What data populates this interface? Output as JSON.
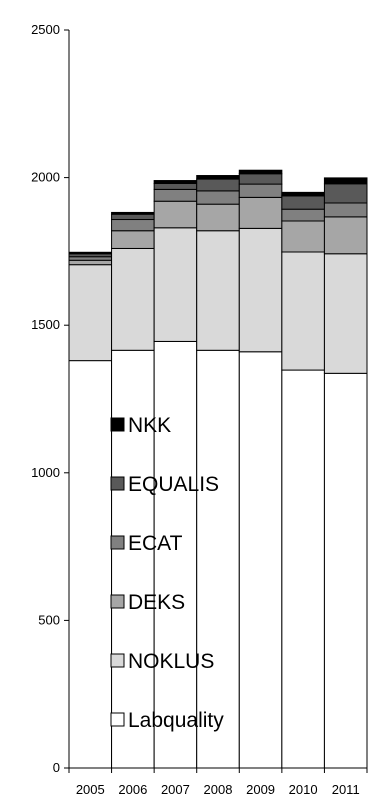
{
  "chart_data": {
    "type": "bar",
    "stacked": true,
    "categories": [
      "2005",
      "2006",
      "2007",
      "2008",
      "2009",
      "2010",
      "2011"
    ],
    "ylim": [
      0,
      2500
    ],
    "yticks": [
      "0",
      "500",
      "1000",
      "1500",
      "2000",
      "2500"
    ],
    "grid": false,
    "legend_position": "inside-bottom-left",
    "series": [
      {
        "name": "Labquality",
        "color": "#ffffff",
        "values": [
          1380,
          1415,
          1445,
          1415,
          1410,
          1348,
          1337
        ]
      },
      {
        "name": "NOKLUS",
        "color": "#d9d9d9",
        "values": [
          325,
          345,
          385,
          405,
          418,
          400,
          405
        ]
      },
      {
        "name": "DEKS",
        "color": "#a6a6a6",
        "values": [
          15,
          60,
          90,
          90,
          105,
          105,
          125
        ]
      },
      {
        "name": "ECAT",
        "color": "#808080",
        "values": [
          12,
          38,
          40,
          45,
          45,
          40,
          47
        ]
      },
      {
        "name": "EQUALIS",
        "color": "#595959",
        "values": [
          10,
          18,
          20,
          40,
          35,
          45,
          65
        ]
      },
      {
        "name": "NKK",
        "color": "#000000",
        "values": [
          5,
          6,
          10,
          12,
          12,
          12,
          20
        ]
      }
    ]
  }
}
